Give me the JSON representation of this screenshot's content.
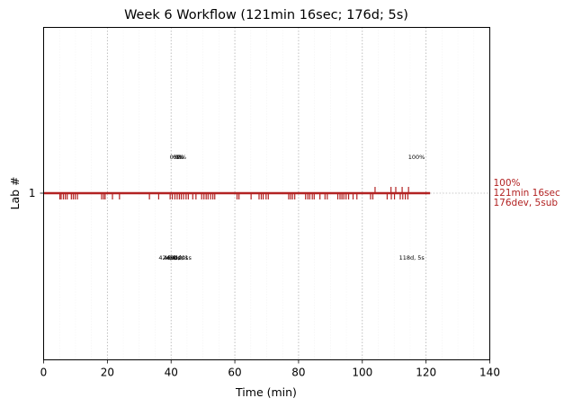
{
  "chart_data": {
    "type": "timeline",
    "title": "Week 6 Workflow (121min 16sec; 176d; 5s)",
    "xlabel": "Time (min)",
    "ylabel": "Lab #",
    "xlim": [
      0,
      140
    ],
    "x_ticks": [
      "0",
      "20",
      "40",
      "60",
      "80",
      "100",
      "120",
      "140"
    ],
    "y_ticks": [
      "1"
    ],
    "grid": "vertical dotted at major ticks, faint at minor ticks",
    "series": [
      {
        "lab": "1",
        "color": "#b22222",
        "start": 0,
        "end": 121.27,
        "dev_events": [
          5.1,
          5.5,
          6.2,
          6.8,
          7.4,
          8.7,
          9.3,
          9.9,
          10.6,
          18.2,
          18.8,
          19.3,
          21.6,
          23.8,
          33.2,
          36.1,
          39.7,
          40.4,
          41.2,
          41.9,
          42.6,
          43.2,
          43.9,
          44.7,
          45.4,
          46.8,
          47.8,
          49.6,
          50.3,
          51.0,
          51.6,
          52.4,
          53.1,
          53.7,
          60.7,
          61.3,
          65.1,
          67.6,
          68.3,
          68.9,
          69.8,
          70.5,
          76.9,
          77.5,
          78.1,
          78.8,
          82.2,
          82.9,
          83.5,
          84.3,
          84.9,
          86.7,
          88.3,
          89.0,
          92.3,
          93.0,
          93.6,
          94.2,
          94.9,
          95.7,
          97.1,
          98.3,
          102.6,
          103.3,
          107.8,
          109.1,
          110.1,
          111.9,
          112.7,
          113.5,
          114.3
        ],
        "submissions": [
          104.0,
          109.0,
          110.5,
          112.5,
          114.5
        ],
        "progress_labels": [
          {
            "x": 41.0,
            "text": "0%"
          },
          {
            "x": 42.0,
            "text": "0%"
          },
          {
            "x": 42.6,
            "text": "0%"
          },
          {
            "x": 43.3,
            "text": "0%"
          },
          {
            "x": 117.0,
            "text": "100%"
          }
        ],
        "duration_labels": [
          {
            "x": 39.5,
            "text": "42d, 0s"
          },
          {
            "x": 41.0,
            "text": "46d, 0s"
          },
          {
            "x": 42.0,
            "text": "49d, 0s"
          },
          {
            "x": 43.0,
            "text": "51d, 1s"
          },
          {
            "x": 115.5,
            "text": "118d, 5s"
          }
        ],
        "end_label": {
          "line1": "100%",
          "line2": "121min 16sec",
          "line3": "176dev, 5sub"
        }
      }
    ]
  }
}
